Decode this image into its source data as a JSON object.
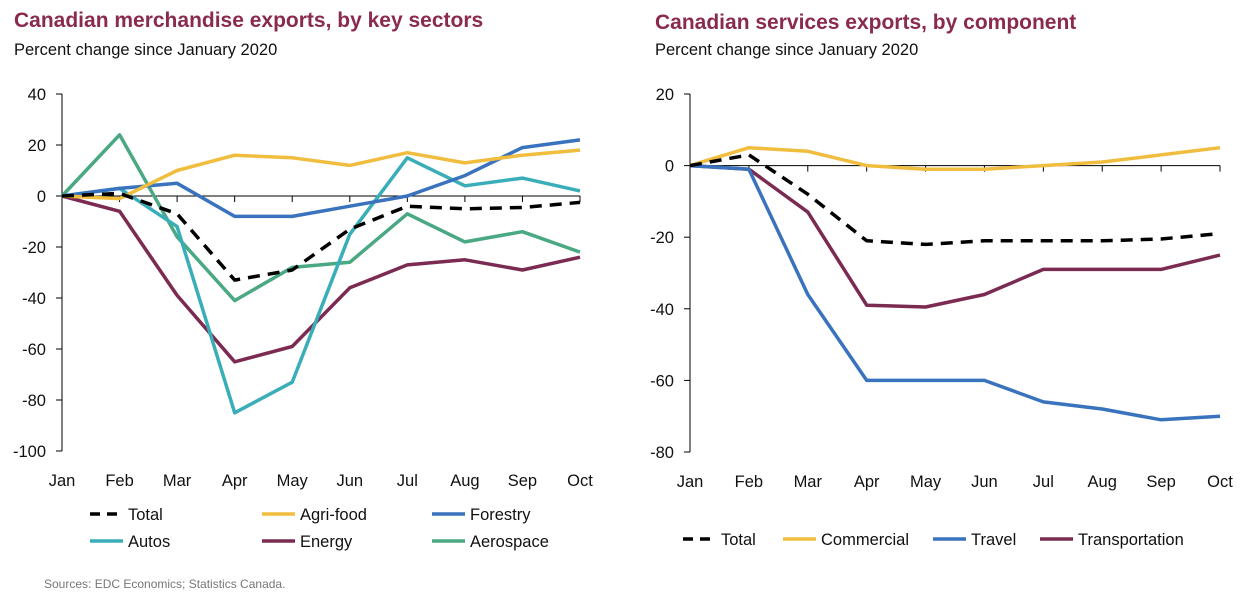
{
  "colors": {
    "title": "#8a2a4f",
    "Total": "#000000",
    "Agri-food": "#f0bd3f",
    "Forestry": "#3a73bd",
    "Autos": "#3aaeb8",
    "Energy": "#7b2a52",
    "Aerospace": "#4aa882",
    "Commercial": "#f0bd3f",
    "Travel": "#3a73bd",
    "Transportation": "#7b2a52"
  },
  "source": "Sources:  EDC Economics; Statistics Canada.",
  "chart_data": [
    {
      "type": "line",
      "title": "Canadian merchandise exports, by key sectors",
      "subtitle": "Percent change since January 2020",
      "categories": [
        "Jan",
        "Feb",
        "Mar",
        "Apr",
        "May",
        "Jun",
        "Jul",
        "Aug",
        "Sep",
        "Oct"
      ],
      "ylim": [
        -100,
        40
      ],
      "yticks": [
        40,
        20,
        0,
        -20,
        -40,
        -60,
        -80,
        -100
      ],
      "grid": false,
      "legend": "bottom",
      "series": [
        {
          "name": "Total",
          "dashed": true,
          "values": [
            0,
            1,
            -7,
            -33,
            -29,
            -13,
            -4,
            -5,
            -4.5,
            -2.5
          ]
        },
        {
          "name": "Agri-food",
          "values": [
            0,
            -1,
            10,
            16,
            15,
            12,
            17,
            13,
            16,
            18
          ]
        },
        {
          "name": "Forestry",
          "values": [
            0,
            3,
            5,
            -8,
            -8,
            -4,
            0,
            8,
            19,
            22
          ]
        },
        {
          "name": "Autos",
          "values": [
            0,
            3,
            -12,
            -85,
            -73,
            -15,
            15,
            4,
            7,
            2
          ]
        },
        {
          "name": "Energy",
          "values": [
            0,
            -6,
            -39,
            -65,
            -59,
            -36,
            -27,
            -25,
            -29,
            -24
          ]
        },
        {
          "name": "Aerospace",
          "values": [
            0,
            24,
            -16,
            -41,
            -28,
            -26,
            -7,
            -18,
            -14,
            -22
          ]
        }
      ]
    },
    {
      "type": "line",
      "title": "Canadian services exports, by component",
      "subtitle": "Percent change since January 2020",
      "categories": [
        "Jan",
        "Feb",
        "Mar",
        "Apr",
        "May",
        "Jun",
        "Jul",
        "Aug",
        "Sep",
        "Oct"
      ],
      "ylim": [
        -80,
        20
      ],
      "yticks": [
        20,
        0,
        -20,
        -40,
        -60,
        -80
      ],
      "grid": false,
      "legend": "bottom",
      "series": [
        {
          "name": "Total",
          "dashed": true,
          "values": [
            0,
            3,
            -8,
            -21,
            -22,
            -21,
            -21,
            -21,
            -20.5,
            -19
          ]
        },
        {
          "name": "Commercial",
          "values": [
            0,
            5,
            4,
            0,
            -1,
            -1,
            0,
            1,
            3,
            5
          ]
        },
        {
          "name": "Travel",
          "values": [
            0,
            -1,
            -36,
            -60,
            -60,
            -60,
            -66,
            -68,
            -71,
            -70
          ]
        },
        {
          "name": "Transportation",
          "values": [
            0,
            -1,
            -13,
            -39,
            -39.5,
            -36,
            -29,
            -29,
            -29,
            -25
          ]
        }
      ]
    }
  ]
}
